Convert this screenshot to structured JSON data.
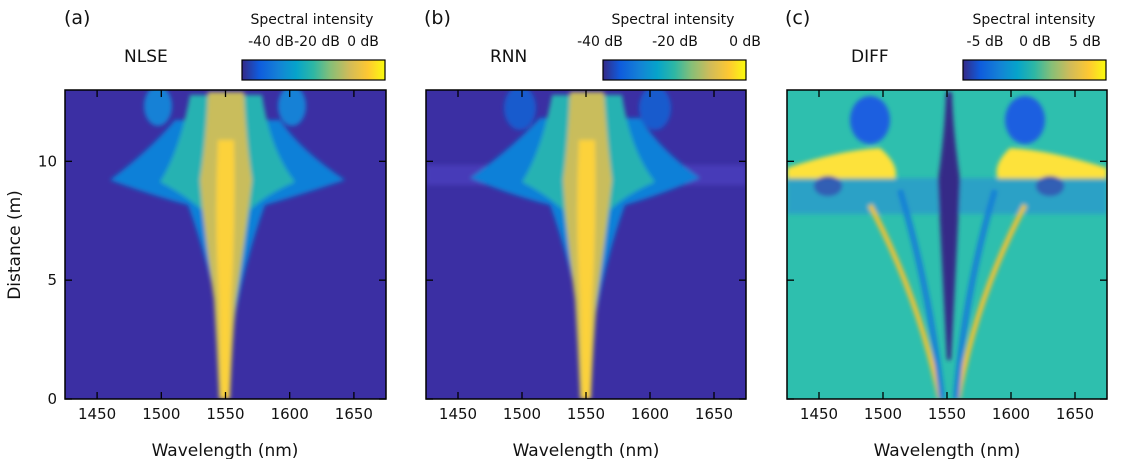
{
  "figure": {
    "ylabel": "Distance (m)",
    "xlabel": "Wavelength (nm)"
  },
  "panels": [
    {
      "label": "(a)",
      "title": "NLSE",
      "colorbar_title": "Spectral intensity",
      "colorbar_ticks": [
        "-40 dB",
        "-20 dB",
        "0 dB"
      ]
    },
    {
      "label": "(b)",
      "title": "RNN",
      "colorbar_title": "Spectral intensity",
      "colorbar_ticks": [
        "-40 dB",
        "-20 dB",
        "0 dB"
      ]
    },
    {
      "label": "(c)",
      "title": "DIFF",
      "colorbar_title": "Spectral intensity",
      "colorbar_ticks": [
        "-5 dB",
        "0 dB",
        "5 dB"
      ]
    }
  ],
  "chart_data": [
    {
      "type": "heatmap",
      "title": "NLSE",
      "xlabel": "Wavelength (nm)",
      "ylabel": "Distance (m)",
      "xlim": [
        1425,
        1675
      ],
      "ylim": [
        0,
        13
      ],
      "xticks": [
        1450,
        1500,
        1550,
        1600,
        1650
      ],
      "yticks": [
        0,
        5,
        10
      ],
      "colorbar": {
        "label": "Spectral intensity",
        "range_db": [
          -50,
          0
        ],
        "ticks": [
          "-40 dB",
          "-20 dB",
          "0 dB"
        ],
        "colormap": "parula"
      },
      "description_values": {
        "center_wavelength_nm": 1550,
        "max_broadening_distance_m": 9
      }
    },
    {
      "type": "heatmap",
      "title": "RNN",
      "xlabel": "Wavelength (nm)",
      "ylabel": "",
      "xlim": [
        1425,
        1675
      ],
      "ylim": [
        0,
        13
      ],
      "xticks": [
        1450,
        1500,
        1550,
        1600,
        1650
      ],
      "yticks": [
        0,
        5,
        10
      ],
      "colorbar": {
        "label": "Spectral intensity",
        "range_db": [
          -50,
          0
        ],
        "ticks": [
          "-40 dB",
          "-20 dB",
          "0 dB"
        ],
        "colormap": "parula"
      }
    },
    {
      "type": "heatmap",
      "title": "DIFF",
      "xlabel": "Wavelength (nm)",
      "ylabel": "",
      "xlim": [
        1425,
        1675
      ],
      "ylim": [
        0,
        13
      ],
      "xticks": [
        1450,
        1500,
        1550,
        1600,
        1650
      ],
      "yticks": [
        0,
        5,
        10
      ],
      "colorbar": {
        "label": "Spectral intensity",
        "range_db": [
          -6.5,
          6.5
        ],
        "ticks": [
          "-5 dB",
          "0 dB",
          "5 dB"
        ],
        "colormap": "parula"
      }
    }
  ]
}
